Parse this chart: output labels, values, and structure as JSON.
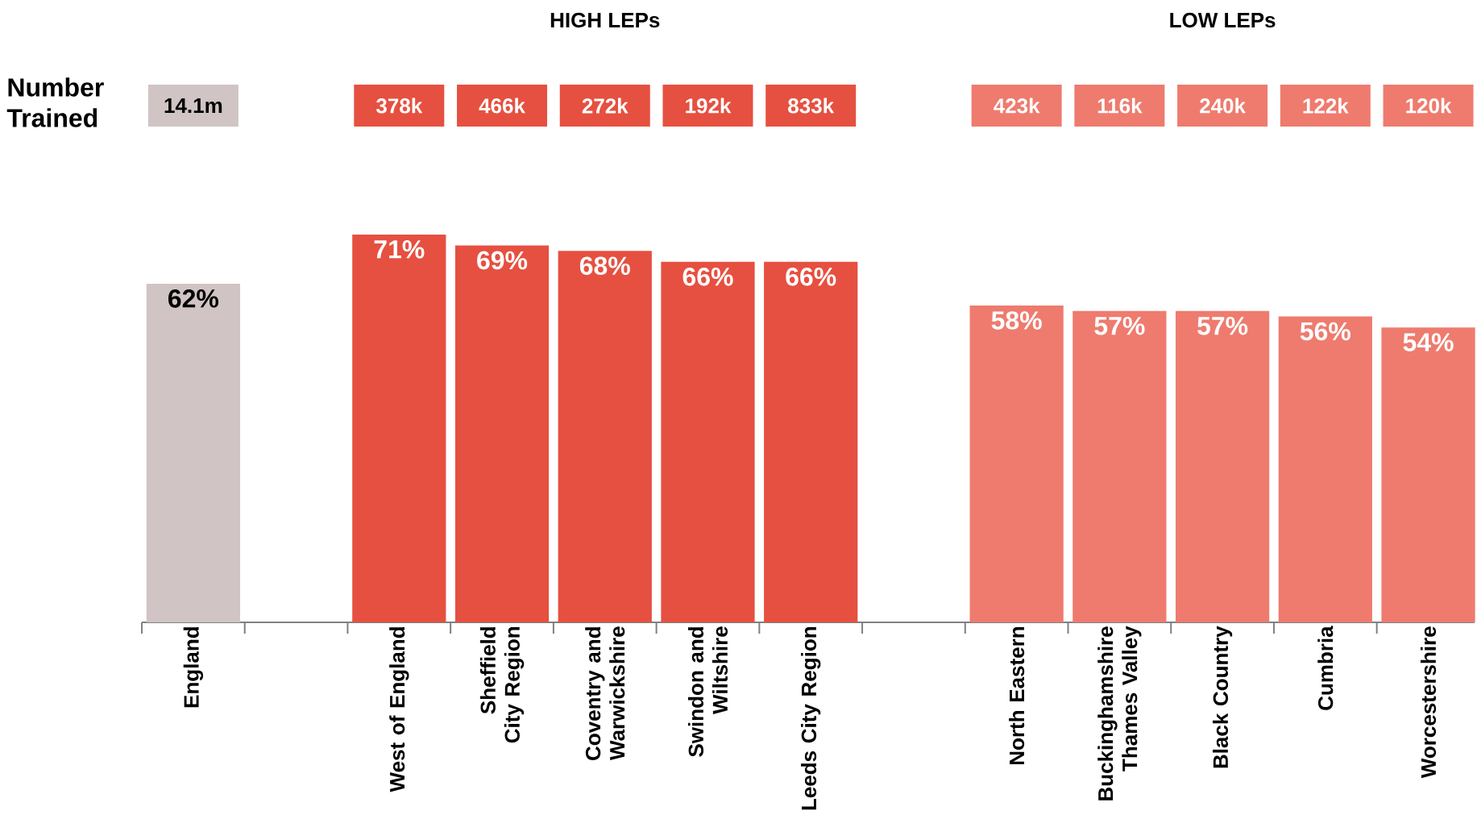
{
  "chart_data": {
    "type": "bar",
    "categories": [
      "England",
      null,
      "West of England",
      "Sheffield City Region",
      "Coventry and Warwickshire",
      "Swindon and Wiltshire",
      "Leeds City Region",
      null,
      "North Eastern",
      "Buckinghamshire Thames Valley",
      "Black Country",
      "Cumbria",
      "Worcestershire"
    ],
    "values": [
      62,
      null,
      71,
      69,
      68,
      66,
      66,
      null,
      58,
      57,
      57,
      56,
      54
    ],
    "value_labels": [
      "62%",
      null,
      "71%",
      "69%",
      "68%",
      "66%",
      "66%",
      null,
      "58%",
      "57%",
      "57%",
      "56%",
      "54%"
    ],
    "colors": [
      "#d0c4c4",
      "#ffffff",
      "#e65040",
      "#e65040",
      "#e65040",
      "#e65040",
      "#e65040",
      "#ffffff",
      "#ee7b6e",
      "#ee7b6e",
      "#ee7b6e",
      "#ee7b6e",
      "#ee7b6e"
    ],
    "annotations": [
      "HIGH LEPs",
      "LOW LEPs",
      "Number Trained",
      "14.1m",
      "378k",
      "466k",
      "272k",
      "192k",
      "833k",
      "423k",
      "116k",
      "240k",
      "122k",
      "120k"
    ]
  }
}
